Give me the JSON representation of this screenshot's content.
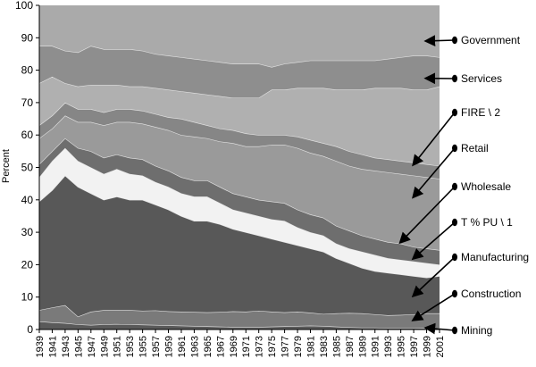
{
  "chart_data": {
    "type": "area",
    "stacked": true,
    "ylabel": "Percent",
    "ylim": [
      0,
      100
    ],
    "yticks": [
      0,
      10,
      20,
      30,
      40,
      50,
      60,
      70,
      80,
      90,
      100
    ],
    "x": [
      1939,
      1941,
      1943,
      1945,
      1947,
      1949,
      1951,
      1953,
      1955,
      1957,
      1959,
      1961,
      1963,
      1965,
      1967,
      1969,
      1971,
      1973,
      1975,
      1977,
      1979,
      1981,
      1983,
      1985,
      1987,
      1989,
      1991,
      1993,
      1995,
      1997,
      1999,
      2001
    ],
    "grid": false,
    "legend": "right, arrow callouts",
    "series_boundaries": [
      {
        "name": "Mining",
        "color": "#5a5a5a",
        "top": [
          2.5,
          2.2,
          2.0,
          1.6,
          1.4,
          1.6,
          1.7,
          1.6,
          1.5,
          1.4,
          1.3,
          1.2,
          1.1,
          1.0,
          0.9,
          0.8,
          0.8,
          0.8,
          0.9,
          1.0,
          1.1,
          1.2,
          1.1,
          0.9,
          0.7,
          0.6,
          0.6,
          0.5,
          0.5,
          0.5,
          0.4,
          0.5
        ]
      },
      {
        "name": "Construction",
        "color": "#7a7a7a",
        "top": [
          6.0,
          6.8,
          7.5,
          4.0,
          5.5,
          6.0,
          6.0,
          6.0,
          5.8,
          5.9,
          5.6,
          5.5,
          5.4,
          5.3,
          5.4,
          5.6,
          5.5,
          5.8,
          5.5,
          5.3,
          5.5,
          5.2,
          4.8,
          5.0,
          5.1,
          5.0,
          4.7,
          4.4,
          4.5,
          4.7,
          5.0,
          5.0
        ]
      },
      {
        "name": "Manufacturing",
        "color": "#585858",
        "top": [
          39.5,
          43.0,
          47.5,
          44.0,
          42.0,
          40.0,
          41.0,
          40.0,
          40.0,
          38.5,
          37.0,
          35.0,
          33.5,
          33.5,
          32.5,
          31.0,
          30.0,
          29.0,
          28.0,
          27.0,
          26.0,
          25.0,
          24.0,
          22.0,
          20.5,
          19.0,
          18.0,
          17.5,
          17.0,
          16.5,
          16.0,
          16.5
        ]
      },
      {
        "name": "T % PU \\ 1",
        "color": "#f2f2f2",
        "top": [
          47.0,
          52.0,
          56.0,
          52.0,
          50.0,
          48.0,
          49.5,
          48.0,
          47.5,
          45.5,
          44.0,
          42.0,
          41.0,
          41.0,
          39.0,
          37.0,
          36.0,
          35.0,
          34.0,
          33.5,
          31.5,
          30.0,
          29.0,
          26.5,
          25.0,
          24.0,
          23.0,
          22.0,
          21.5,
          21.0,
          20.5,
          20.0
        ]
      },
      {
        "name": "Wholesale",
        "color": "#6e6e6e",
        "top": [
          51.0,
          55.0,
          59.0,
          56.0,
          55.0,
          53.0,
          54.0,
          53.0,
          52.5,
          50.5,
          49.0,
          47.0,
          46.0,
          46.0,
          44.0,
          42.0,
          41.0,
          40.0,
          39.5,
          39.0,
          37.0,
          35.5,
          34.5,
          32.0,
          30.5,
          29.0,
          28.0,
          27.0,
          26.5,
          25.5,
          25.0,
          24.5
        ]
      },
      {
        "name": "Retail",
        "color": "#9a9a9a",
        "top": [
          59.0,
          62.0,
          66.0,
          64.0,
          64.0,
          63.0,
          64.0,
          64.0,
          63.5,
          62.5,
          61.5,
          60.0,
          59.5,
          59.0,
          58.0,
          57.5,
          56.5,
          56.5,
          57.0,
          57.0,
          56.0,
          54.5,
          53.5,
          52.0,
          50.5,
          49.5,
          49.0,
          48.5,
          48.0,
          47.5,
          47.0,
          46.5
        ]
      },
      {
        "name": "FIRE \\ 2",
        "color": "#868686",
        "top": [
          63.0,
          66.0,
          70.0,
          68.0,
          68.0,
          67.0,
          68.0,
          68.0,
          67.5,
          66.5,
          65.5,
          65.0,
          64.0,
          63.0,
          62.0,
          61.5,
          60.5,
          60.0,
          60.0,
          60.0,
          59.5,
          58.5,
          57.5,
          56.5,
          55.0,
          54.0,
          53.0,
          52.5,
          52.0,
          51.5,
          51.0,
          50.5
        ]
      },
      {
        "name": "Services",
        "color": "#b0b0b0",
        "top": [
          76.0,
          78.0,
          76.0,
          75.0,
          75.5,
          75.5,
          75.5,
          75.0,
          75.0,
          74.5,
          74.0,
          73.5,
          73.0,
          72.5,
          72.0,
          71.5,
          71.5,
          71.5,
          74.0,
          74.0,
          74.5,
          74.5,
          74.5,
          74.0,
          74.0,
          74.0,
          74.5,
          74.5,
          74.5,
          74.0,
          74.0,
          75.0
        ]
      },
      {
        "name": "Government",
        "color": "#8e8e8e",
        "top": [
          87.5,
          87.5,
          86.0,
          85.5,
          87.5,
          86.5,
          86.5,
          86.5,
          86.0,
          85.0,
          84.5,
          84.0,
          83.5,
          83.0,
          82.5,
          82.0,
          82.0,
          82.0,
          81.0,
          82.0,
          82.5,
          83.0,
          83.0,
          83.0,
          83.0,
          83.0,
          83.0,
          83.5,
          84.0,
          84.5,
          84.5,
          84.0
        ]
      },
      {
        "name": "",
        "color": "#aaaaaa",
        "top": [
          100,
          100,
          100,
          100,
          100,
          100,
          100,
          100,
          100,
          100,
          100,
          100,
          100,
          100,
          100,
          100,
          100,
          100,
          100,
          100,
          100,
          100,
          100,
          100,
          100,
          100,
          100,
          100,
          100,
          100,
          100,
          100
        ]
      }
    ],
    "callouts": [
      {
        "label": "Government",
        "target_x": 1999,
        "target_y": 89
      },
      {
        "label": "Services",
        "target_x": 1999,
        "target_y": 77.5
      },
      {
        "label": "FIRE \\ 2",
        "target_x": 1997,
        "target_y": 51
      },
      {
        "label": "Retail",
        "target_x": 1997,
        "target_y": 41
      },
      {
        "label": "Wholesale",
        "target_x": 1995,
        "target_y": 27
      },
      {
        "label": "T % PU \\ 1",
        "target_x": 1997,
        "target_y": 22
      },
      {
        "label": "Manufacturing",
        "target_x": 1997,
        "target_y": 10.5
      },
      {
        "label": "Construction",
        "target_x": 1997,
        "target_y": 3
      },
      {
        "label": "Mining",
        "target_x": 1999,
        "target_y": 0.5
      }
    ]
  }
}
